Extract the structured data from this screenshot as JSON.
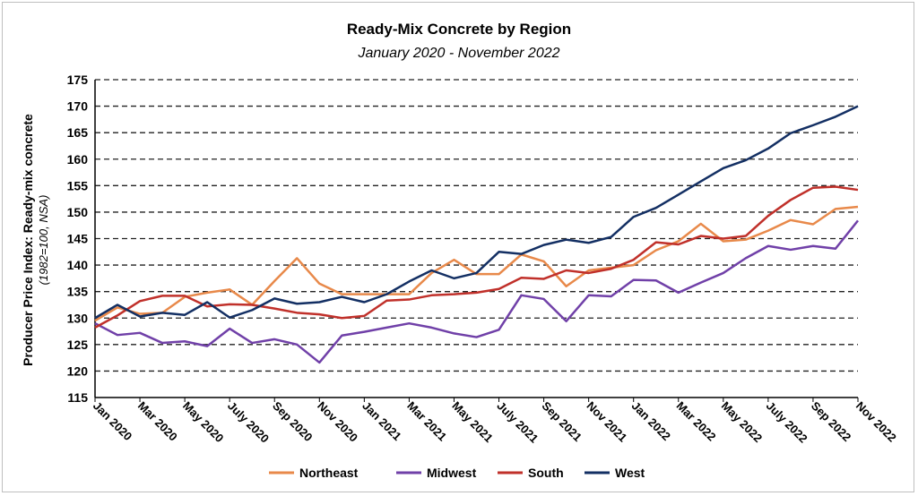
{
  "chart_data": {
    "type": "line",
    "title": "Ready-Mix Concrete by Region",
    "subtitle": "January 2020 - November 2022",
    "ylabel": "Producer Price Index: Ready-mix concrete",
    "ylabel_sub": "(1982=100, NSA)",
    "xlabel": "",
    "ylim": [
      115,
      175
    ],
    "yticks": [
      115,
      120,
      125,
      130,
      135,
      140,
      145,
      150,
      155,
      160,
      165,
      170,
      175
    ],
    "grid": "horizontal dashed",
    "legend": "bottom",
    "x": [
      "Jan 2020",
      "Feb 2020",
      "Mar 2020",
      "Apr 2020",
      "May 2020",
      "Jun 2020",
      "July 2020",
      "Aug 2020",
      "Sep 2020",
      "Oct 2020",
      "Nov 2020",
      "Dec 2020",
      "Jan 2021",
      "Feb 2021",
      "Mar 2021",
      "Apr 2021",
      "May 2021",
      "Jun 2021",
      "July 2021",
      "Aug 2021",
      "Sep 2021",
      "Oct 2021",
      "Nov 2021",
      "Dec 2021",
      "Jan 2022",
      "Feb 2022",
      "Mar 2022",
      "Apr 2022",
      "May 2022",
      "Jun 2022",
      "July 2022",
      "Aug 2022",
      "Sep 2022",
      "Oct 2022",
      "Nov 2022"
    ],
    "xtick_labels": [
      "Jan 2020",
      "Mar 2020",
      "May 2020",
      "July 2020",
      "Sep 2020",
      "Nov 2020",
      "Jan 2021",
      "Mar 2021",
      "May 2021",
      "July 2021",
      "Sep 2021",
      "Nov 2021",
      "Jan 2022",
      "Mar 2022",
      "May 2022",
      "July 2022",
      "Sep 2022",
      "Nov 2022"
    ],
    "series": [
      {
        "name": "Northeast",
        "color": "#E8894A",
        "values": [
          129.5,
          132,
          130.8,
          131,
          134,
          134.8,
          135.4,
          132.5,
          137,
          141.3,
          136.5,
          134.5,
          134.5,
          134.5,
          134.5,
          138.5,
          141,
          138.3,
          138.3,
          142,
          140.7,
          136,
          139,
          139.5,
          140,
          142.8,
          144.5,
          147.8,
          144.5,
          144.8,
          146.5,
          148.5,
          147.7,
          150.6,
          151
        ]
      },
      {
        "name": "Midwest",
        "color": "#7040A8",
        "values": [
          129,
          126.8,
          127.2,
          125.3,
          125.6,
          124.7,
          128,
          125.3,
          126,
          125,
          121.6,
          126.7,
          127.4,
          128.2,
          129,
          128.2,
          127.1,
          126.4,
          127.8,
          134.3,
          133.6,
          129.4,
          134.3,
          134.1,
          137.2,
          137.1,
          134.8,
          136.7,
          138.5,
          141.3,
          143.6,
          142.9,
          143.6,
          143.1,
          148.4
        ]
      },
      {
        "name": "South",
        "color": "#C0302A",
        "values": [
          128.2,
          130.5,
          133.2,
          134.2,
          134.2,
          132.2,
          132.6,
          132.5,
          131.8,
          131,
          130.7,
          130,
          130.4,
          133.3,
          133.5,
          134.3,
          134.5,
          134.8,
          135.5,
          137.6,
          137.4,
          139,
          138.5,
          139.3,
          141,
          144.3,
          143.9,
          145.5,
          145,
          145.5,
          149.3,
          152.3,
          154.6,
          154.8,
          154.2
        ]
      },
      {
        "name": "West",
        "color": "#132F63",
        "values": [
          130,
          132.5,
          130.3,
          131,
          130.6,
          133,
          130.1,
          131.5,
          133.7,
          132.7,
          133,
          134,
          133,
          134.5,
          136.9,
          139,
          137.5,
          138.5,
          142.5,
          142.1,
          143.8,
          144.8,
          144.2,
          145.3,
          149.1,
          150.8,
          153.3,
          155.8,
          158.3,
          159.8,
          162,
          164.9,
          166.4,
          168,
          170
        ]
      }
    ]
  }
}
